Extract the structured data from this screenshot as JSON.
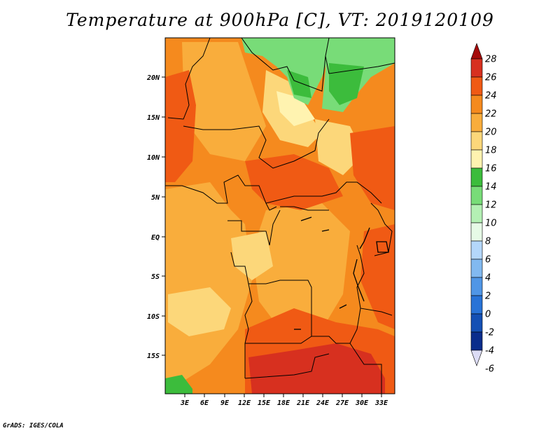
{
  "title": "Temperature at 900hPa [C], VT: 2019120109",
  "footer": "GrADS: IGES/COLA",
  "map": {
    "lon_labels": [
      "3E",
      "6E",
      "9E",
      "12E",
      "15E",
      "18E",
      "21E",
      "24E",
      "27E",
      "30E",
      "33E"
    ],
    "lat_labels": [
      "20N",
      "15N",
      "10N",
      "5N",
      "EQ",
      "5S",
      "10S",
      "15S"
    ]
  },
  "colorbar": {
    "labels": [
      "28",
      "26",
      "24",
      "22",
      "20",
      "18",
      "16",
      "14",
      "12",
      "10",
      "8",
      "6",
      "4",
      "2",
      "0",
      "-2",
      "-4",
      "-6"
    ],
    "colors": [
      "#a50a0a",
      "#d7301f",
      "#f05a14",
      "#f58a1e",
      "#f9ad3c",
      "#fcd77a",
      "#fff3b0",
      "#3cbc3c",
      "#78dc78",
      "#b4f0b4",
      "#e6fae6",
      "#b4d7fa",
      "#82b9f0",
      "#5096e6",
      "#2873d7",
      "#1450b4",
      "#0a2d8c",
      "#000a5a"
    ]
  },
  "palette": {
    "deep_red": "#d7301f",
    "red_orange": "#f05a14",
    "orange": "#f58a1e",
    "light_orange": "#f9ad3c",
    "pale_yellow": "#fcd77a",
    "cream": "#fff3b0",
    "green": "#3cbc3c",
    "light_green": "#78dc78"
  }
}
